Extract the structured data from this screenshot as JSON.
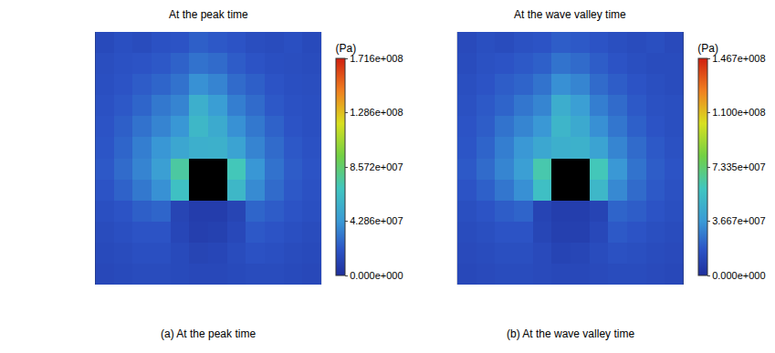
{
  "chart_data": [
    {
      "type": "heatmap",
      "title": "At the peak time",
      "caption": "(a) At the peak time",
      "colorbar_title": "(Pa)",
      "tick_labels": false,
      "colorbar_range": [
        0,
        171600000.0
      ],
      "colorbar_ticks": [
        {
          "value": 0,
          "label": "0.000e+000"
        },
        {
          "value": 42860000.0,
          "label": "4.286e+007"
        },
        {
          "value": 85720000.0,
          "label": "8.572e+007"
        },
        {
          "value": 128600000.0,
          "label": "1.286e+008"
        },
        {
          "value": 171600000.0,
          "label": "1.716e+008"
        }
      ],
      "cells": [
        [
          15000000.0,
          18000000.0,
          16000000.0,
          19000000.0,
          20000000.0,
          24000000.0,
          22000000.0,
          20000000.0,
          17000000.0,
          16000000.0,
          18000000.0,
          15000000.0
        ],
        [
          17000000.0,
          19000000.0,
          20000000.0,
          22000000.0,
          25000000.0,
          30000000.0,
          28000000.0,
          23000000.0,
          20000000.0,
          18000000.0,
          17000000.0,
          16000000.0
        ],
        [
          18000000.0,
          20000000.0,
          23000000.0,
          26000000.0,
          30000000.0,
          40000000.0,
          36000000.0,
          28000000.0,
          24000000.0,
          20000000.0,
          18000000.0,
          17000000.0
        ],
        [
          19000000.0,
          22000000.0,
          26000000.0,
          32000000.0,
          36000000.0,
          55000000.0,
          45000000.0,
          34000000.0,
          28000000.0,
          22000000.0,
          19000000.0,
          18000000.0
        ],
        [
          20000000.0,
          24000000.0,
          30000000.0,
          36000000.0,
          42000000.0,
          60000000.0,
          52000000.0,
          40000000.0,
          32000000.0,
          25000000.0,
          20000000.0,
          18000000.0
        ],
        [
          21000000.0,
          26000000.0,
          34000000.0,
          42000000.0,
          50000000.0,
          55000000.0,
          56000000.0,
          48000000.0,
          36000000.0,
          28000000.0,
          22000000.0,
          19000000.0
        ],
        [
          22000000.0,
          28000000.0,
          36000000.0,
          46000000.0,
          75000000.0,
          null,
          null,
          70000000.0,
          42000000.0,
          30000000.0,
          23000000.0,
          20000000.0
        ],
        [
          20000000.0,
          25000000.0,
          32000000.0,
          40000000.0,
          65000000.0,
          null,
          null,
          60000000.0,
          38000000.0,
          28000000.0,
          22000000.0,
          19000000.0
        ],
        [
          18000000.0,
          20000000.0,
          24000000.0,
          26000000.0,
          12000000.0,
          8000000.0,
          8000000.0,
          12000000.0,
          26000000.0,
          23000000.0,
          20000000.0,
          18000000.0
        ],
        [
          16000000.0,
          18000000.0,
          20000000.0,
          20000000.0,
          13000000.0,
          9000000.0,
          10000000.0,
          14000000.0,
          22000000.0,
          20000000.0,
          18000000.0,
          16000000.0
        ],
        [
          15000000.0,
          16000000.0,
          18000000.0,
          18000000.0,
          15000000.0,
          12000000.0,
          13000000.0,
          16000000.0,
          19000000.0,
          18000000.0,
          16000000.0,
          15000000.0
        ],
        [
          14000000.0,
          15000000.0,
          16000000.0,
          16000000.0,
          15000000.0,
          14000000.0,
          14000000.0,
          15000000.0,
          16000000.0,
          16000000.0,
          15000000.0,
          14000000.0
        ]
      ]
    },
    {
      "type": "heatmap",
      "title": "At the wave valley time",
      "caption": "(b) At the wave valley time",
      "colorbar_title": "(Pa)",
      "tick_labels": false,
      "colorbar_range": [
        0,
        146700000.0
      ],
      "colorbar_ticks": [
        {
          "value": 0,
          "label": "0.000e+000"
        },
        {
          "value": 36670000.0,
          "label": "3.667e+007"
        },
        {
          "value": 73350000.0,
          "label": "7.335e+007"
        },
        {
          "value": 110000000.0,
          "label": "1.100e+008"
        },
        {
          "value": 146700000.0,
          "label": "1.467e+008"
        }
      ],
      "cells": [
        [
          13000000.0,
          15000000.0,
          14000000.0,
          16000000.0,
          17000000.0,
          20000000.0,
          19000000.0,
          17000000.0,
          15000000.0,
          14000000.0,
          15000000.0,
          13000000.0
        ],
        [
          14000000.0,
          16000000.0,
          17000000.0,
          19000000.0,
          21000000.0,
          26000000.0,
          24000000.0,
          20000000.0,
          17000000.0,
          15000000.0,
          14000000.0,
          14000000.0
        ],
        [
          15000000.0,
          17000000.0,
          20000000.0,
          22000000.0,
          26000000.0,
          34000000.0,
          31000000.0,
          24000000.0,
          20000000.0,
          17000000.0,
          15000000.0,
          14000000.0
        ],
        [
          16000000.0,
          19000000.0,
          22000000.0,
          27000000.0,
          31000000.0,
          46000000.0,
          39000000.0,
          29000000.0,
          24000000.0,
          19000000.0,
          16000000.0,
          15000000.0
        ],
        [
          17000000.0,
          20000000.0,
          26000000.0,
          31000000.0,
          36000000.0,
          50000000.0,
          44000000.0,
          34000000.0,
          27000000.0,
          21000000.0,
          17000000.0,
          15000000.0
        ],
        [
          18000000.0,
          22000000.0,
          29000000.0,
          36000000.0,
          43000000.0,
          47000000.0,
          48000000.0,
          41000000.0,
          31000000.0,
          24000000.0,
          19000000.0,
          16000000.0
        ],
        [
          19000000.0,
          24000000.0,
          31000000.0,
          39000000.0,
          62000000.0,
          null,
          null,
          60000000.0,
          36000000.0,
          26000000.0,
          20000000.0,
          17000000.0
        ],
        [
          17000000.0,
          21000000.0,
          27000000.0,
          34000000.0,
          55000000.0,
          null,
          null,
          51000000.0,
          32000000.0,
          24000000.0,
          19000000.0,
          16000000.0
        ],
        [
          15000000.0,
          17000000.0,
          20000000.0,
          22000000.0,
          10000000.0,
          7000000.0,
          7000000.0,
          10000000.0,
          22000000.0,
          20000000.0,
          17000000.0,
          15000000.0
        ],
        [
          14000000.0,
          15000000.0,
          17000000.0,
          17000000.0,
          11000000.0,
          8000000.0,
          8000000.0,
          12000000.0,
          19000000.0,
          17000000.0,
          15000000.0,
          14000000.0
        ],
        [
          13000000.0,
          14000000.0,
          15000000.0,
          15000000.0,
          13000000.0,
          10000000.0,
          11000000.0,
          14000000.0,
          16000000.0,
          15000000.0,
          14000000.0,
          13000000.0
        ],
        [
          12000000.0,
          13000000.0,
          14000000.0,
          14000000.0,
          13000000.0,
          12000000.0,
          12000000.0,
          13000000.0,
          14000000.0,
          14000000.0,
          13000000.0,
          12000000.0
        ]
      ]
    }
  ]
}
